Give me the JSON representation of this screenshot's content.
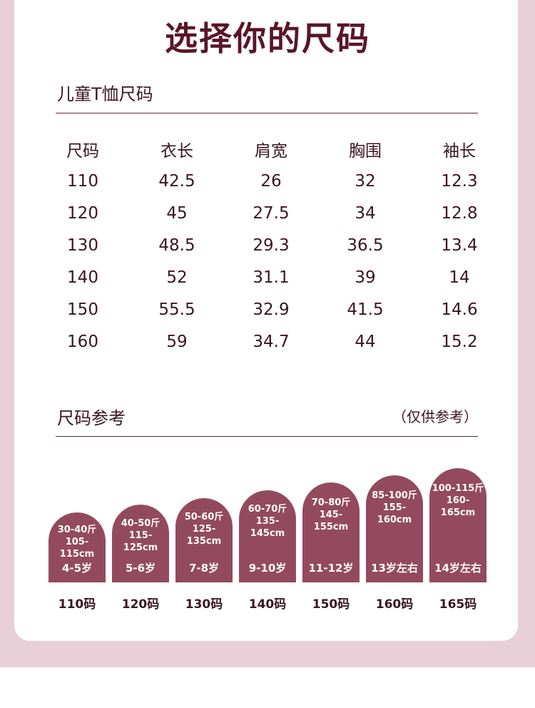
{
  "title": "选择你的尺码",
  "kids_section": {
    "title": "儿童T恤尺码",
    "headers": [
      "尺码",
      "衣长",
      "肩宽",
      "胸围",
      "袖长"
    ],
    "rows": [
      [
        "110",
        "42.5",
        "26",
        "32",
        "12.3"
      ],
      [
        "120",
        "45",
        "27.5",
        "34",
        "12.8"
      ],
      [
        "130",
        "48.5",
        "29.3",
        "36.5",
        "13.4"
      ],
      [
        "140",
        "52",
        "31.1",
        "39",
        "14"
      ],
      [
        "150",
        "55.5",
        "32.9",
        "41.5",
        "14.6"
      ],
      [
        "160",
        "59",
        "34.7",
        "44",
        "15.2"
      ]
    ]
  },
  "reference_section": {
    "title": "尺码参考",
    "note": "（仅供参考）",
    "items": [
      {
        "weight": "30-40斤",
        "height": "105-115cm",
        "age": "4-5岁",
        "code": "110码"
      },
      {
        "weight": "40-50斤",
        "height": "115-125cm",
        "age": "5-6岁",
        "code": "120码"
      },
      {
        "weight": "50-60斤",
        "height": "125-135cm",
        "age": "7-8岁",
        "code": "130码"
      },
      {
        "weight": "60-70斤",
        "height": "135-145cm",
        "age": "9-10岁",
        "code": "140码"
      },
      {
        "weight": "70-80斤",
        "height": "145-155cm",
        "age": "11-12岁",
        "code": "150码"
      },
      {
        "weight": "85-100斤",
        "height": "155-160cm",
        "age": "13岁左右",
        "code": "160码"
      },
      {
        "weight": "100-115斤",
        "height": "160-165cm",
        "age": "14岁左右",
        "code": "165码"
      }
    ]
  },
  "colors": {
    "title": "#5a1528",
    "arch": "#934a5e",
    "background": "#e9cfd8"
  }
}
